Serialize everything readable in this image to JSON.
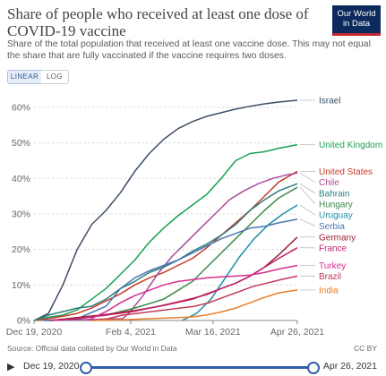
{
  "header": {
    "title": "Share of people who received at least one dose of COVID-19 vaccine",
    "subtitle": "Share of the total population that received at least one vaccine dose. This may not equal the share that are fully vaccinated if the vaccine requires two doses.",
    "logo_text": "Our World\nin Data"
  },
  "controls": {
    "linear_label": "LINEAR",
    "log_label": "LOG",
    "active_scale": "linear"
  },
  "chart_data": {
    "type": "line",
    "title": "Share of people who received at least one dose of COVID-19 vaccine",
    "y_scale": "linear",
    "ylim": [
      0,
      62
    ],
    "yticks": [
      0,
      10,
      20,
      30,
      40,
      50,
      60
    ],
    "ytick_labels": [
      "0%",
      "10%",
      "20%",
      "30%",
      "40%",
      "50%",
      "60%"
    ],
    "xlim": [
      "2020-12-19",
      "2021-04-26"
    ],
    "xtick_labels": [
      "Dec 19, 2020",
      "Feb 4, 2021",
      "Mar 16, 2021",
      "Apr 26, 2021"
    ],
    "xtick_dates": [
      "2020-12-19",
      "2021-02-04",
      "2021-03-16",
      "2021-04-26"
    ],
    "grid": "horizontal dashed",
    "legend": "end-of-line labels, right",
    "series": [
      {
        "name": "Israel",
        "color": "#3c4e66",
        "points": [
          [
            "2020-12-19",
            0
          ],
          [
            "2020-12-26",
            2
          ],
          [
            "2021-01-02",
            10
          ],
          [
            "2021-01-09",
            20
          ],
          [
            "2021-01-16",
            27
          ],
          [
            "2021-01-23",
            31
          ],
          [
            "2021-01-30",
            36
          ],
          [
            "2021-02-06",
            42
          ],
          [
            "2021-02-13",
            47
          ],
          [
            "2021-02-20",
            51
          ],
          [
            "2021-02-27",
            54
          ],
          [
            "2021-03-06",
            56
          ],
          [
            "2021-03-13",
            57.5
          ],
          [
            "2021-03-20",
            58.5
          ],
          [
            "2021-03-27",
            59.5
          ],
          [
            "2021-04-03",
            60.3
          ],
          [
            "2021-04-10",
            61
          ],
          [
            "2021-04-17",
            61.5
          ],
          [
            "2021-04-26",
            62
          ]
        ]
      },
      {
        "name": "United Kingdom",
        "color": "#18a054",
        "points": [
          [
            "2020-12-19",
            0
          ],
          [
            "2020-12-26",
            0.9
          ],
          [
            "2021-01-02",
            1.5
          ],
          [
            "2021-01-09",
            3
          ],
          [
            "2021-01-16",
            6
          ],
          [
            "2021-01-23",
            9
          ],
          [
            "2021-01-30",
            13
          ],
          [
            "2021-02-06",
            17
          ],
          [
            "2021-02-13",
            22
          ],
          [
            "2021-02-20",
            26
          ],
          [
            "2021-02-27",
            29.5
          ],
          [
            "2021-03-06",
            32.5
          ],
          [
            "2021-03-13",
            35.5
          ],
          [
            "2021-03-20",
            40
          ],
          [
            "2021-03-27",
            45
          ],
          [
            "2021-04-03",
            47
          ],
          [
            "2021-04-10",
            47.5
          ],
          [
            "2021-04-17",
            48.5
          ],
          [
            "2021-04-26",
            49.5
          ]
        ]
      },
      {
        "name": "United States",
        "color": "#c83c2b",
        "points": [
          [
            "2020-12-19",
            0
          ],
          [
            "2020-12-26",
            0.5
          ],
          [
            "2021-01-02",
            1.2
          ],
          [
            "2021-01-09",
            2
          ],
          [
            "2021-01-16",
            3.5
          ],
          [
            "2021-01-23",
            5.5
          ],
          [
            "2021-01-30",
            7.5
          ],
          [
            "2021-02-06",
            10
          ],
          [
            "2021-02-13",
            12
          ],
          [
            "2021-02-20",
            13.5
          ],
          [
            "2021-02-27",
            15.5
          ],
          [
            "2021-03-06",
            17.5
          ],
          [
            "2021-03-13",
            20.5
          ],
          [
            "2021-03-20",
            24
          ],
          [
            "2021-03-27",
            27.5
          ],
          [
            "2021-04-03",
            31
          ],
          [
            "2021-04-10",
            35
          ],
          [
            "2021-04-17",
            39
          ],
          [
            "2021-04-26",
            42
          ]
        ]
      },
      {
        "name": "Chile",
        "color": "#a84b9b",
        "points": [
          [
            "2020-12-24",
            0
          ],
          [
            "2021-01-31",
            0.5
          ],
          [
            "2021-02-03",
            2
          ],
          [
            "2021-02-10",
            7
          ],
          [
            "2021-02-17",
            13
          ],
          [
            "2021-02-24",
            18
          ],
          [
            "2021-03-03",
            22
          ],
          [
            "2021-03-10",
            26
          ],
          [
            "2021-03-17",
            30
          ],
          [
            "2021-03-24",
            34
          ],
          [
            "2021-03-31",
            36.5
          ],
          [
            "2021-04-07",
            38.5
          ],
          [
            "2021-04-14",
            40
          ],
          [
            "2021-04-21",
            41
          ],
          [
            "2021-04-26",
            41.5
          ]
        ]
      },
      {
        "name": "Bahrain",
        "color": "#2f7d7e",
        "points": [
          [
            "2020-12-19",
            0
          ],
          [
            "2020-12-26",
            1.5
          ],
          [
            "2021-01-02",
            2.5
          ],
          [
            "2021-01-09",
            3.5
          ],
          [
            "2021-01-16",
            4
          ],
          [
            "2021-01-23",
            6
          ],
          [
            "2021-01-30",
            9
          ],
          [
            "2021-02-06",
            11
          ],
          [
            "2021-02-13",
            13.5
          ],
          [
            "2021-02-20",
            15
          ],
          [
            "2021-02-27",
            17
          ],
          [
            "2021-03-06",
            19.5
          ],
          [
            "2021-03-13",
            21.5
          ],
          [
            "2021-03-20",
            24
          ],
          [
            "2021-03-27",
            27
          ],
          [
            "2021-04-03",
            31
          ],
          [
            "2021-04-10",
            34
          ],
          [
            "2021-04-17",
            36.5
          ],
          [
            "2021-04-26",
            38.5
          ]
        ]
      },
      {
        "name": "Hungary",
        "color": "#3a8b4a",
        "points": [
          [
            "2020-12-26",
            0
          ],
          [
            "2021-01-09",
            0.5
          ],
          [
            "2021-01-23",
            1.5
          ],
          [
            "2021-02-06",
            3.5
          ],
          [
            "2021-02-20",
            6
          ],
          [
            "2021-03-06",
            11
          ],
          [
            "2021-03-13",
            15
          ],
          [
            "2021-03-20",
            19
          ],
          [
            "2021-03-27",
            23
          ],
          [
            "2021-04-03",
            27
          ],
          [
            "2021-04-10",
            31
          ],
          [
            "2021-04-17",
            34.5
          ],
          [
            "2021-04-26",
            37.5
          ]
        ]
      },
      {
        "name": "Uruguay",
        "color": "#1e8fa8",
        "points": [
          [
            "2021-03-01",
            0
          ],
          [
            "2021-03-08",
            2
          ],
          [
            "2021-03-15",
            6
          ],
          [
            "2021-03-22",
            12
          ],
          [
            "2021-03-29",
            18
          ],
          [
            "2021-04-05",
            23
          ],
          [
            "2021-04-12",
            27
          ],
          [
            "2021-04-19",
            30
          ],
          [
            "2021-04-26",
            32.5
          ]
        ]
      },
      {
        "name": "Serbia",
        "color": "#4a77b3",
        "points": [
          [
            "2020-12-24",
            0
          ],
          [
            "2021-01-09",
            0.5
          ],
          [
            "2021-01-23",
            4
          ],
          [
            "2021-01-30",
            9
          ],
          [
            "2021-02-06",
            12
          ],
          [
            "2021-02-13",
            14
          ],
          [
            "2021-02-20",
            15.5
          ],
          [
            "2021-02-27",
            17
          ],
          [
            "2021-03-06",
            19
          ],
          [
            "2021-03-13",
            21
          ],
          [
            "2021-03-20",
            23
          ],
          [
            "2021-03-27",
            24.5
          ],
          [
            "2021-04-03",
            26
          ],
          [
            "2021-04-10",
            26.5
          ],
          [
            "2021-04-17",
            27.5
          ],
          [
            "2021-04-26",
            28.5
          ]
        ]
      },
      {
        "name": "Germany",
        "color": "#9b2335",
        "points": [
          [
            "2020-12-27",
            0
          ],
          [
            "2021-01-09",
            0.8
          ],
          [
            "2021-01-23",
            1.7
          ],
          [
            "2021-02-06",
            2.8
          ],
          [
            "2021-02-20",
            4.2
          ],
          [
            "2021-03-06",
            6
          ],
          [
            "2021-03-13",
            7.5
          ],
          [
            "2021-03-20",
            9
          ],
          [
            "2021-03-27",
            10.5
          ],
          [
            "2021-04-03",
            12.5
          ],
          [
            "2021-04-10",
            15
          ],
          [
            "2021-04-17",
            18.5
          ],
          [
            "2021-04-26",
            23.5
          ]
        ]
      },
      {
        "name": "France",
        "color": "#c4206a",
        "points": [
          [
            "2020-12-27",
            0
          ],
          [
            "2021-01-09",
            0.5
          ],
          [
            "2021-01-23",
            1.5
          ],
          [
            "2021-02-06",
            2.6
          ],
          [
            "2021-02-20",
            4.3
          ],
          [
            "2021-03-06",
            6.2
          ],
          [
            "2021-03-13",
            7.3
          ],
          [
            "2021-03-20",
            9
          ],
          [
            "2021-03-27",
            10.5
          ],
          [
            "2021-04-03",
            12.5
          ],
          [
            "2021-04-10",
            15
          ],
          [
            "2021-04-17",
            17.5
          ],
          [
            "2021-04-26",
            20.5
          ]
        ]
      },
      {
        "name": "Turkey",
        "color": "#d62d8c",
        "points": [
          [
            "2021-01-14",
            0
          ],
          [
            "2021-01-23",
            2.5
          ],
          [
            "2021-01-30",
            5
          ],
          [
            "2021-02-06",
            7
          ],
          [
            "2021-02-13",
            8.5
          ],
          [
            "2021-02-20",
            10
          ],
          [
            "2021-02-27",
            11
          ],
          [
            "2021-03-06",
            11.5
          ],
          [
            "2021-03-13",
            12
          ],
          [
            "2021-03-20",
            12.3
          ],
          [
            "2021-03-27",
            12.5
          ],
          [
            "2021-04-03",
            12.8
          ],
          [
            "2021-04-10",
            13.5
          ],
          [
            "2021-04-17",
            14.5
          ],
          [
            "2021-04-26",
            15.5
          ]
        ]
      },
      {
        "name": "Brazil",
        "color": "#c23a56",
        "points": [
          [
            "2021-01-17",
            0
          ],
          [
            "2021-01-24",
            0.5
          ],
          [
            "2021-01-31",
            1.5
          ],
          [
            "2021-02-07",
            2
          ],
          [
            "2021-02-14",
            2.5
          ],
          [
            "2021-02-21",
            3
          ],
          [
            "2021-02-28",
            3.5
          ],
          [
            "2021-03-07",
            4
          ],
          [
            "2021-03-14",
            5
          ],
          [
            "2021-03-21",
            6.5
          ],
          [
            "2021-03-28",
            8
          ],
          [
            "2021-04-04",
            9.5
          ],
          [
            "2021-04-11",
            10.5
          ],
          [
            "2021-04-18",
            11.5
          ],
          [
            "2021-04-26",
            12.5
          ]
        ]
      },
      {
        "name": "India",
        "color": "#e87e2a",
        "points": [
          [
            "2021-01-16",
            0
          ],
          [
            "2021-01-30",
            0.2
          ],
          [
            "2021-02-13",
            0.5
          ],
          [
            "2021-02-27",
            0.8
          ],
          [
            "2021-03-06",
            1
          ],
          [
            "2021-03-13",
            1.6
          ],
          [
            "2021-03-20",
            2.4
          ],
          [
            "2021-03-27",
            3.5
          ],
          [
            "2021-04-03",
            5
          ],
          [
            "2021-04-10",
            6.5
          ],
          [
            "2021-04-17",
            7.8
          ],
          [
            "2021-04-26",
            8.6
          ]
        ]
      }
    ]
  },
  "footer": {
    "source": "Source: Official data collated by Our World in Data",
    "license": "CC BY"
  },
  "slider": {
    "start_date": "Dec 19, 2020",
    "end_date": "Apr 26, 2021"
  }
}
